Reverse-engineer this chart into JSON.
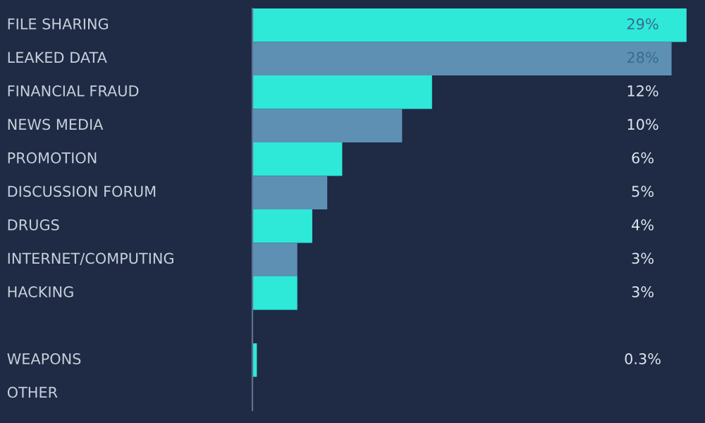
{
  "chart_data": {
    "type": "bar",
    "orientation": "horizontal",
    "categories": [
      "FILE SHARING",
      "LEAKED DATA",
      "FINANCIAL FRAUD",
      "NEWS MEDIA",
      "PROMOTION",
      "DISCUSSION FORUM",
      "DRUGS",
      "INTERNET/COMPUTING",
      "HACKING",
      null,
      "WEAPONS",
      "OTHER"
    ],
    "values": [
      29,
      28,
      12,
      10,
      6,
      5,
      4,
      3,
      3,
      null,
      0.3,
      null
    ],
    "colors": [
      "#2ee8d8",
      "#5e90b4",
      "#2ee8d8",
      "#5e90b4",
      "#2ee8d8",
      "#5e90b4",
      "#2ee8d8",
      "#5e90b4",
      "#2ee8d8",
      "#5e90b4",
      "#2ee8d8",
      "#5e90b4"
    ],
    "value_labels": [
      "29%",
      "28%",
      "12%",
      "10%",
      "6%",
      "5%",
      "4%",
      "3%",
      "3%",
      null,
      "0.3%",
      null
    ]
  }
}
